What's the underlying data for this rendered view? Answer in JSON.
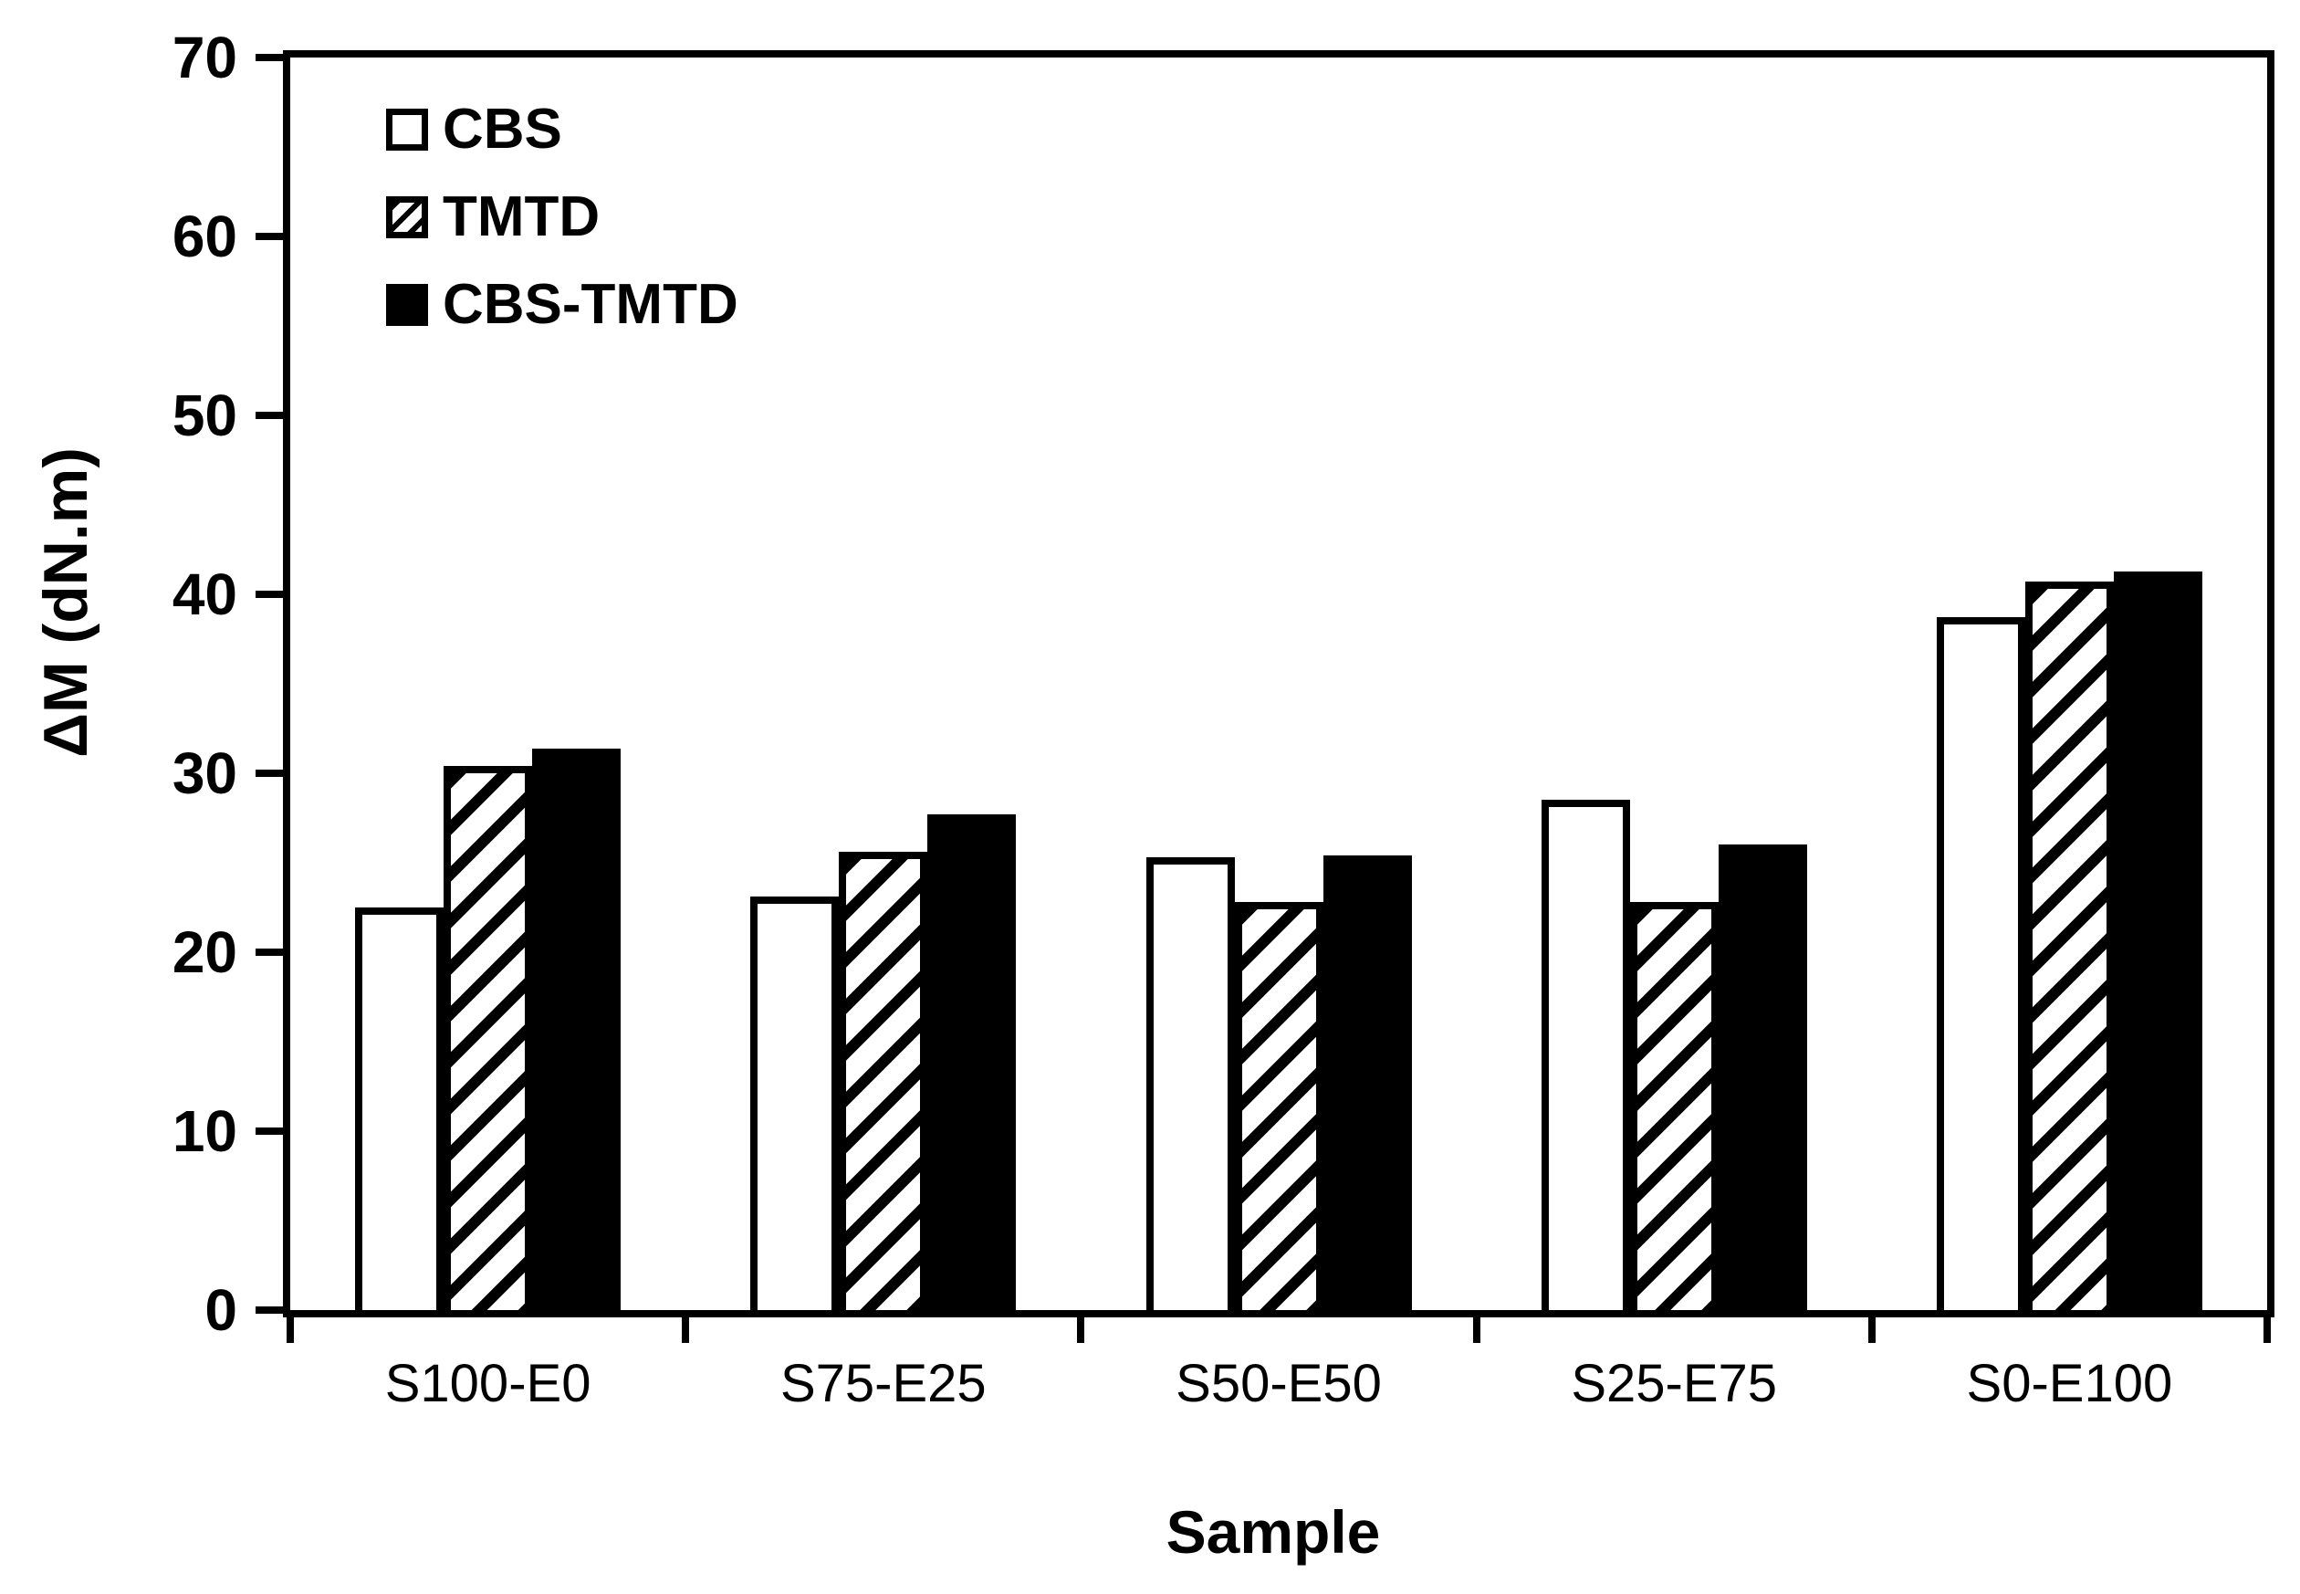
{
  "chart_data": {
    "type": "bar",
    "xlabel": "Sample",
    "ylabel": "ΔM (dN.m)",
    "ylim": [
      0,
      70
    ],
    "yticks": [
      0,
      10,
      20,
      30,
      40,
      50,
      60,
      70
    ],
    "categories": [
      "S100-E0",
      "S75-E25",
      "S50-E50",
      "S25-E75",
      "S0-E100"
    ],
    "series": [
      {
        "name": "CBS",
        "fill": "white",
        "values": [
          22.5,
          23.1,
          25.3,
          28.5,
          38.7
        ]
      },
      {
        "name": "TMTD",
        "fill": "hatch",
        "values": [
          30.4,
          25.6,
          22.8,
          22.8,
          40.7
        ]
      },
      {
        "name": "CBS-TMTD",
        "fill": "black",
        "values": [
          31.4,
          27.7,
          25.4,
          26.0,
          41.3
        ]
      }
    ],
    "legend_position": "top-left",
    "grid": false,
    "colors": {
      "foreground": "#000000",
      "background": "#ffffff"
    }
  }
}
